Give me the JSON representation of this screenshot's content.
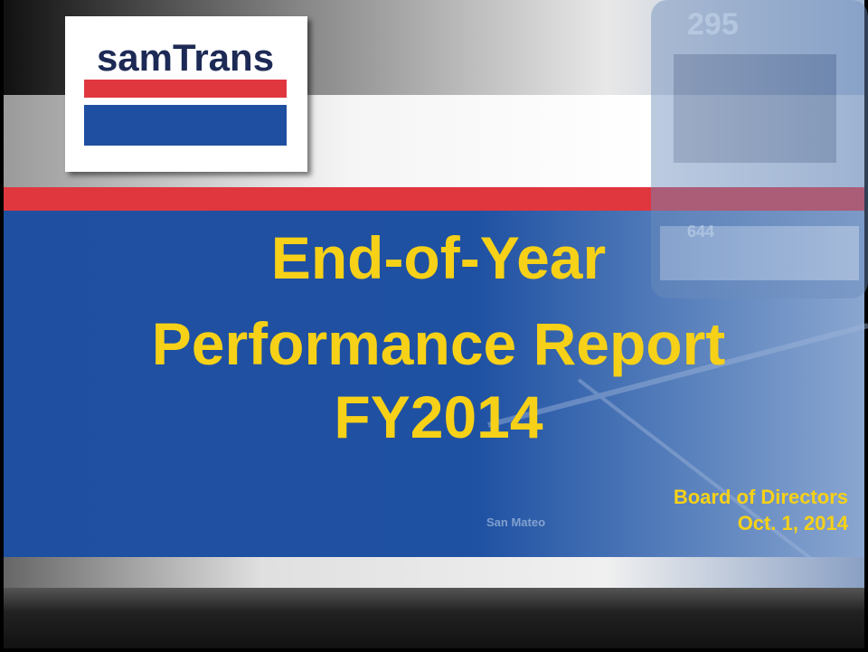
{
  "logo": {
    "text": "samTrans"
  },
  "title": {
    "lines": [
      "End-of-Year",
      "Performance Report",
      "FY2014"
    ]
  },
  "subtitle": {
    "lines": [
      "Board of Directors",
      "Oct. 1, 2014"
    ]
  },
  "photo_labels": {
    "route": "295",
    "bus_number": "644",
    "map_place": "San Mateo"
  }
}
